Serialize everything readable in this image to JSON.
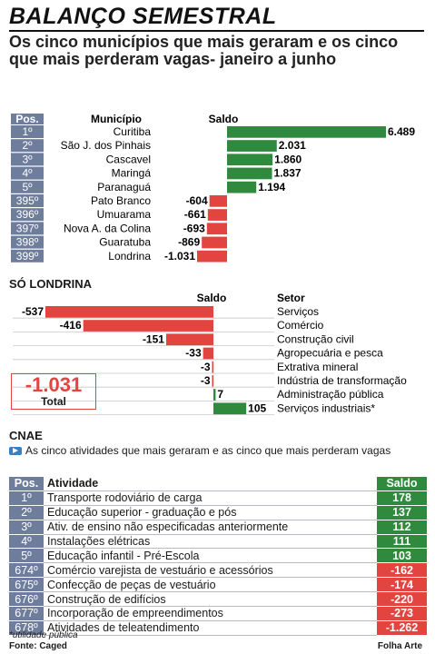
{
  "header": {
    "title": "BALANÇO SEMESTRAL",
    "subtitle": "Os cinco municípios que mais geraram e os cinco que mais perderam vagas- janeiro a junho"
  },
  "colors": {
    "positive": "#2f8a3d",
    "negative": "#e24440",
    "pos_badge": "#6f7d9c"
  },
  "chart_data": [
    {
      "type": "bar",
      "headers": {
        "pos": "Pos.",
        "municipio": "Município",
        "saldo": "Saldo"
      },
      "positions": [
        "1º",
        "2º",
        "3º",
        "4º",
        "5º",
        "395º",
        "396º",
        "397º",
        "398º",
        "399º"
      ],
      "categories": [
        "Curitiba",
        "São J. dos Pinhais",
        "Cascavel",
        "Maringá",
        "Paranaguá",
        "Pato Branco",
        "Umuarama",
        "Nova A. da Colina",
        "Guaratuba",
        "Londrina"
      ],
      "values": [
        6489,
        2031,
        1860,
        1837,
        1194,
        -604,
        -661,
        -693,
        -869,
        -1031
      ],
      "labels": [
        "6.489",
        "2.031",
        "1.860",
        "1.837",
        "1.194",
        "-604",
        "-661",
        "-693",
        "-869",
        "-1.031"
      ]
    },
    {
      "type": "bar",
      "title": "SÓ LONDRINA",
      "headers": {
        "saldo": "Saldo",
        "setor": "Setor"
      },
      "categories": [
        "Serviços",
        "Comércio",
        "Construção civil",
        "Agropecuária e pesca",
        "Extrativa mineral",
        "Indústria de transformação",
        "Administração pública",
        "Serviços industriais*"
      ],
      "values": [
        -537,
        -416,
        -151,
        -33,
        -3,
        -3,
        7,
        105
      ],
      "labels": [
        "-537",
        "-416",
        "-151",
        "-33",
        "-3",
        "-3",
        "7",
        "105"
      ],
      "total": {
        "value": "-1.031",
        "label": "Total"
      }
    },
    {
      "type": "table",
      "title": "CNAE",
      "note": "As cinco atividades que mais geraram e as cinco que mais perderam vagas",
      "headers": {
        "pos": "Pos.",
        "atividade": "Atividade",
        "saldo": "Saldo"
      },
      "rows": [
        {
          "pos": "1º",
          "atividade": "Transporte rodoviário de carga",
          "saldo": "178",
          "value": 178
        },
        {
          "pos": "2º",
          "atividade": "Educação superior - graduação e pós",
          "saldo": "137",
          "value": 137
        },
        {
          "pos": "3º",
          "atividade": "Ativ. de ensino não especificadas anteriormente",
          "saldo": "112",
          "value": 112
        },
        {
          "pos": "4º",
          "atividade": "Instalações elétricas",
          "saldo": "111",
          "value": 111
        },
        {
          "pos": "5º",
          "atividade": "Educação infantil - Pré-Escola",
          "saldo": "103",
          "value": 103
        },
        {
          "pos": "674º",
          "atividade": "Comércio varejista de vestuário e acessórios",
          "saldo": "-162",
          "value": -162
        },
        {
          "pos": "675º",
          "atividade": "Confecção de peças de vestuário",
          "saldo": "-174",
          "value": -174
        },
        {
          "pos": "676º",
          "atividade": "Construção de edifícios",
          "saldo": "-220",
          "value": -220
        },
        {
          "pos": "677º",
          "atividade": "Incorporação de empreendimentos",
          "saldo": "-273",
          "value": -273
        },
        {
          "pos": "678º",
          "atividade": "Atividades de teleatendimento",
          "saldo": "-1.262",
          "value": -1262
        }
      ]
    }
  ],
  "footer": {
    "note": "*utilidade pública",
    "source": "Fonte: Caged",
    "credit": "Folha Arte"
  }
}
